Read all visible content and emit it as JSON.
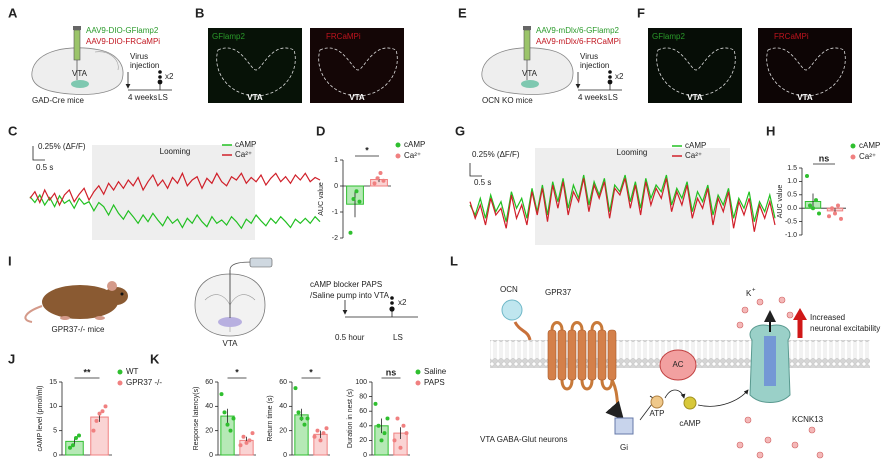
{
  "A": {
    "letter": "A",
    "virus_1": "AAV9-DIO-GFlamp2",
    "virus_2": "AAV9-DIO-FRCaMPi",
    "region": "VTA",
    "step_1": "Virus",
    "step_2": "injection",
    "wait": "4 weeks",
    "test": "LS",
    "repeat": "x2",
    "mice": "GAD-Cre mice"
  },
  "B": {
    "letter": "B",
    "image_1": "GFlamp2",
    "image_2": "FRCaMPi",
    "region_1": "VTA",
    "region_2": "VTA"
  },
  "E": {
    "letter": "E",
    "virus_1": "AAV9-mDlx/6-GFlamp2",
    "virus_2": "AAV9-mDlx/6-FRCaMPi",
    "region": "VTA",
    "step_1": "Virus",
    "step_2": "injection",
    "wait": "4 weeks",
    "test": "LS",
    "repeat": "x2",
    "mice": "OCN KO mice"
  },
  "F": {
    "letter": "F",
    "image_1": "GFlamp2",
    "image_2": "FRCaMPi",
    "region_1": "VTA",
    "region_2": "VTA"
  },
  "C": {
    "letter": "C",
    "scale_y": "0.25% (ΔF/F)",
    "scale_x": "0.5 s",
    "stimulus": "Looming",
    "chart": {
      "type": "line",
      "ylim": [
        -0.5,
        0.4
      ],
      "series": [
        {
          "name": "cAMP",
          "color": "#22c022",
          "values": [
            0.02,
            -0.05,
            0.04,
            -0.08,
            0.01,
            -0.1,
            0.03,
            -0.06,
            -0.02,
            -0.12,
            0.0,
            -0.07,
            -0.04,
            -0.15,
            -0.05,
            -0.1,
            -0.2,
            -0.08,
            -0.18,
            -0.25,
            -0.15,
            -0.22,
            -0.3,
            -0.2,
            -0.28,
            -0.18,
            -0.26,
            -0.33,
            -0.22,
            -0.3,
            -0.25,
            -0.35,
            -0.24,
            -0.3,
            -0.2,
            -0.28,
            -0.34,
            -0.22,
            -0.3,
            -0.26,
            -0.32,
            -0.22,
            -0.28,
            -0.36,
            -0.25,
            -0.3,
            -0.2,
            -0.27,
            -0.33,
            -0.24,
            -0.3,
            -0.22,
            -0.28,
            -0.35,
            -0.25,
            -0.3,
            -0.24,
            -0.3,
            -0.22,
            -0.28
          ]
        },
        {
          "name": "Ca²⁺",
          "color": "#d0202a",
          "values": [
            0.0,
            0.08,
            -0.05,
            0.1,
            -0.02,
            0.06,
            -0.08,
            0.04,
            0.1,
            -0.04,
            0.05,
            0.12,
            -0.02,
            0.08,
            0.15,
            0.05,
            0.18,
            0.1,
            0.2,
            0.12,
            0.22,
            0.15,
            0.25,
            0.1,
            0.2,
            0.28,
            0.15,
            0.22,
            0.12,
            0.25,
            0.18,
            0.3,
            0.15,
            0.22,
            0.26,
            0.12,
            0.24,
            0.18,
            0.3,
            0.2,
            0.15,
            0.26,
            0.22,
            0.3,
            0.18,
            0.25,
            0.2,
            0.28,
            0.16,
            0.24,
            0.3,
            0.2,
            0.26,
            0.18,
            0.28,
            0.22,
            0.3,
            0.2,
            0.25,
            0.22
          ]
        }
      ]
    }
  },
  "D": {
    "letter": "D",
    "chart": {
      "type": "bar",
      "ylabel": "AUC value",
      "ylim": [
        -2,
        1
      ],
      "yticks": [
        1,
        0,
        -1,
        -2
      ],
      "categories": [
        "cAMP",
        "Ca²⁺"
      ],
      "colors": [
        "#2fbf2f",
        "#f08080"
      ],
      "values": [
        -0.7,
        0.25
      ],
      "errors": [
        0.5,
        0.1
      ],
      "points": [
        [
          -1.8,
          -0.5,
          -0.2,
          -0.6
        ],
        [
          0.1,
          0.3,
          0.5,
          0.2
        ]
      ],
      "sig": "*"
    }
  },
  "G": {
    "letter": "G",
    "scale_y": "0.25% (ΔF/F)",
    "scale_x": "0.5 s",
    "stimulus": "Looming",
    "chart": {
      "type": "line",
      "ylim": [
        -0.6,
        0.6
      ],
      "series": [
        {
          "name": "cAMP",
          "color": "#22c022",
          "values": [
            0.0,
            -0.15,
            0.1,
            -0.2,
            0.15,
            -0.1,
            0.05,
            -0.25,
            0.2,
            -0.05,
            0.1,
            -0.2,
            0.25,
            -0.1,
            0.3,
            -0.15,
            0.35,
            0.05,
            0.4,
            -0.05,
            0.3,
            0.1,
            0.45,
            0.0,
            0.35,
            0.15,
            0.4,
            -0.1,
            0.3,
            0.2,
            0.45,
            0.05,
            0.35,
            -0.05,
            0.4,
            0.1,
            0.3,
            0.2,
            0.45,
            0.0,
            0.25,
            0.1,
            0.35,
            -0.1,
            0.2,
            0.05,
            0.3,
            -0.15,
            0.15,
            0.0,
            0.25,
            -0.2,
            0.1,
            -0.05,
            0.2,
            -0.25,
            0.05,
            -0.1,
            0.15,
            -0.2
          ]
        },
        {
          "name": "Ca²⁺",
          "color": "#d0202a",
          "values": [
            0.05,
            -0.2,
            0.0,
            -0.3,
            0.1,
            -0.15,
            -0.05,
            -0.35,
            0.15,
            -0.2,
            0.0,
            -0.3,
            0.2,
            -0.15,
            0.25,
            -0.25,
            0.3,
            -0.05,
            0.35,
            -0.15,
            0.2,
            0.05,
            0.4,
            -0.1,
            0.3,
            0.1,
            0.35,
            -0.2,
            0.25,
            0.15,
            0.4,
            -0.05,
            0.3,
            -0.15,
            0.35,
            0.0,
            0.25,
            0.1,
            0.4,
            -0.1,
            0.2,
            0.0,
            0.3,
            -0.2,
            0.1,
            -0.05,
            0.25,
            -0.3,
            0.1,
            -0.1,
            0.2,
            -0.35,
            0.05,
            -0.15,
            0.1,
            -0.4,
            0.0,
            -0.2,
            0.05,
            -0.3
          ]
        }
      ]
    }
  },
  "H": {
    "letter": "H",
    "chart": {
      "type": "bar",
      "ylabel": "AUC value",
      "ylim": [
        -1,
        1.5
      ],
      "yticks": [
        1.5,
        {
          "value": 1,
          "label": "1.0"
        },
        0.5,
        {
          "value": 0,
          "label": "0.0"
        },
        -0.5,
        {
          "value": -1,
          "label": "-1.0"
        }
      ],
      "categories": [
        "cAMP",
        "Ca²⁺"
      ],
      "colors": [
        "#2fbf2f",
        "#f08080"
      ],
      "values": [
        0.25,
        -0.1
      ],
      "errors": [
        0.3,
        0.1
      ],
      "points": [
        [
          1.2,
          0.1,
          0.0,
          0.3,
          -0.2
        ],
        [
          -0.3,
          0.0,
          -0.2,
          0.1,
          -0.4
        ]
      ],
      "sig": "ns"
    }
  },
  "I": {
    "letter": "I",
    "mice": "GPR37-/- mice",
    "region": "VTA",
    "protocol_1": "cAMP blocker PAPS",
    "protocol_2": "/Saline pump into VTA",
    "wait": "0.5 hour",
    "test": "LS",
    "repeat": "x2"
  },
  "J": {
    "letter": "J",
    "chart": {
      "type": "bar",
      "ylabel": "cAMP level (pmol/ml)",
      "ylim": [
        0,
        15
      ],
      "yticks": [
        0,
        5,
        10,
        15
      ],
      "categories": [
        "WT",
        "GPR37 -/-"
      ],
      "colors": [
        "#2fbf2f",
        "#f08080"
      ],
      "values": [
        2.8,
        7.8
      ],
      "errors": [
        0.8,
        1.0
      ],
      "points": [
        [
          1.5,
          2,
          3.5,
          4
        ],
        [
          5,
          7,
          8.5,
          9,
          10
        ]
      ],
      "sig": "**"
    }
  },
  "K": {
    "letter": "K",
    "legend": [
      "Saline",
      "PAPS"
    ],
    "colors": [
      "#2fbf2f",
      "#f08080"
    ],
    "charts": [
      {
        "type": "bar",
        "ylabel": "Response latency(s)",
        "ylim": [
          0,
          60
        ],
        "yticks": [
          0,
          20,
          40,
          60
        ],
        "values": [
          32,
          12
        ],
        "errors": [
          6,
          3
        ],
        "points": [
          [
            50,
            35,
            25,
            20,
            30
          ],
          [
            8,
            15,
            10,
            12,
            18
          ]
        ],
        "sig": "*"
      },
      {
        "type": "bar",
        "ylabel": "Return time (s)",
        "ylim": [
          0,
          60
        ],
        "yticks": [
          0,
          20,
          40,
          60
        ],
        "values": [
          33,
          17
        ],
        "errors": [
          5,
          3
        ],
        "points": [
          [
            55,
            35,
            30,
            25,
            30
          ],
          [
            15,
            20,
            12,
            18,
            22
          ]
        ],
        "sig": "*"
      },
      {
        "type": "bar",
        "ylabel": "Duration in nest (s)",
        "ylim": [
          0,
          100
        ],
        "yticks": [
          0,
          20,
          40,
          60,
          80,
          100
        ],
        "values": [
          40,
          30
        ],
        "errors": [
          10,
          8
        ],
        "points": [
          [
            70,
            40,
            20,
            30,
            50
          ],
          [
            20,
            50,
            10,
            40,
            30
          ]
        ],
        "sig": "ns"
      }
    ]
  },
  "L": {
    "letter": "L",
    "ligand": "OCN",
    "receptor": "GPR37",
    "enzyme": "AC",
    "substrate": "ATP",
    "product": "cAMP",
    "protein": "Gi",
    "ion": "K",
    "ion_charge": "+",
    "effect_1": "Increased",
    "effect_2": "neuronal excitability",
    "channel": "KCNK13",
    "cells": "VTA GABA-Glut neurons"
  }
}
